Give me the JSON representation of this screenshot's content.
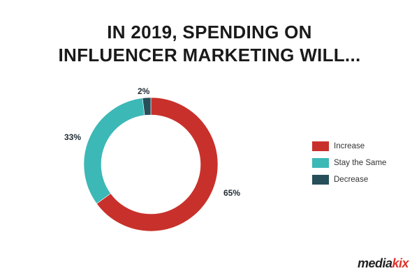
{
  "title": {
    "line1": "IN 2019, SPENDING ON",
    "line2": "INFLUENCER MARKETING WILL..."
  },
  "chart_data": {
    "type": "pie",
    "donut": true,
    "series": [
      {
        "name": "Increase",
        "value": 65,
        "label": "65%",
        "color": "#c8312b"
      },
      {
        "name": "Stay the Same",
        "value": 33,
        "label": "33%",
        "color": "#3cb8b7"
      },
      {
        "name": "Decrease",
        "value": 2,
        "label": "2%",
        "color": "#264f5a"
      }
    ],
    "legend_position": "right"
  },
  "logo": {
    "text_main": "media",
    "text_accent": "kix"
  }
}
